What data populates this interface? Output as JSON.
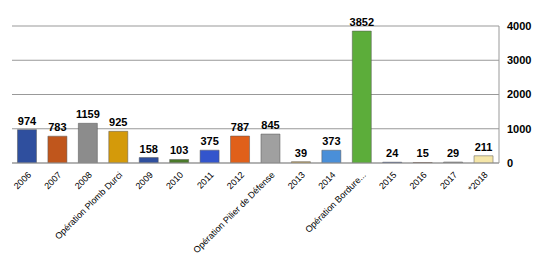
{
  "chart_data": {
    "type": "bar",
    "categories": [
      "2006",
      "2007",
      "2008",
      "Opération Plomb Durci",
      "2009",
      "2010",
      "2011",
      "2012",
      "Opération Pilier de Défense",
      "2013",
      "2014",
      "Opération Bordure...",
      "2015",
      "2016",
      "2017",
      "*2018"
    ],
    "values": [
      974,
      783,
      1159,
      925,
      158,
      103,
      375,
      787,
      845,
      39,
      373,
      3852,
      24,
      15,
      29,
      211
    ],
    "colors": [
      "#2f4f9e",
      "#c0561c",
      "#8c8c8c",
      "#d49a0a",
      "#2f4f9e",
      "#4a7a2a",
      "#3355cc",
      "#e0601a",
      "#a0a0a0",
      "#d4a84a",
      "#4a8fd8",
      "#5cad3a",
      "#3355aa",
      "#c06030",
      "#909090",
      "#f5e6a8"
    ],
    "ylim": [
      0,
      4000
    ],
    "yticks": [
      0,
      1000,
      2000,
      3000,
      4000
    ],
    "grid": true,
    "data_labels": true
  }
}
